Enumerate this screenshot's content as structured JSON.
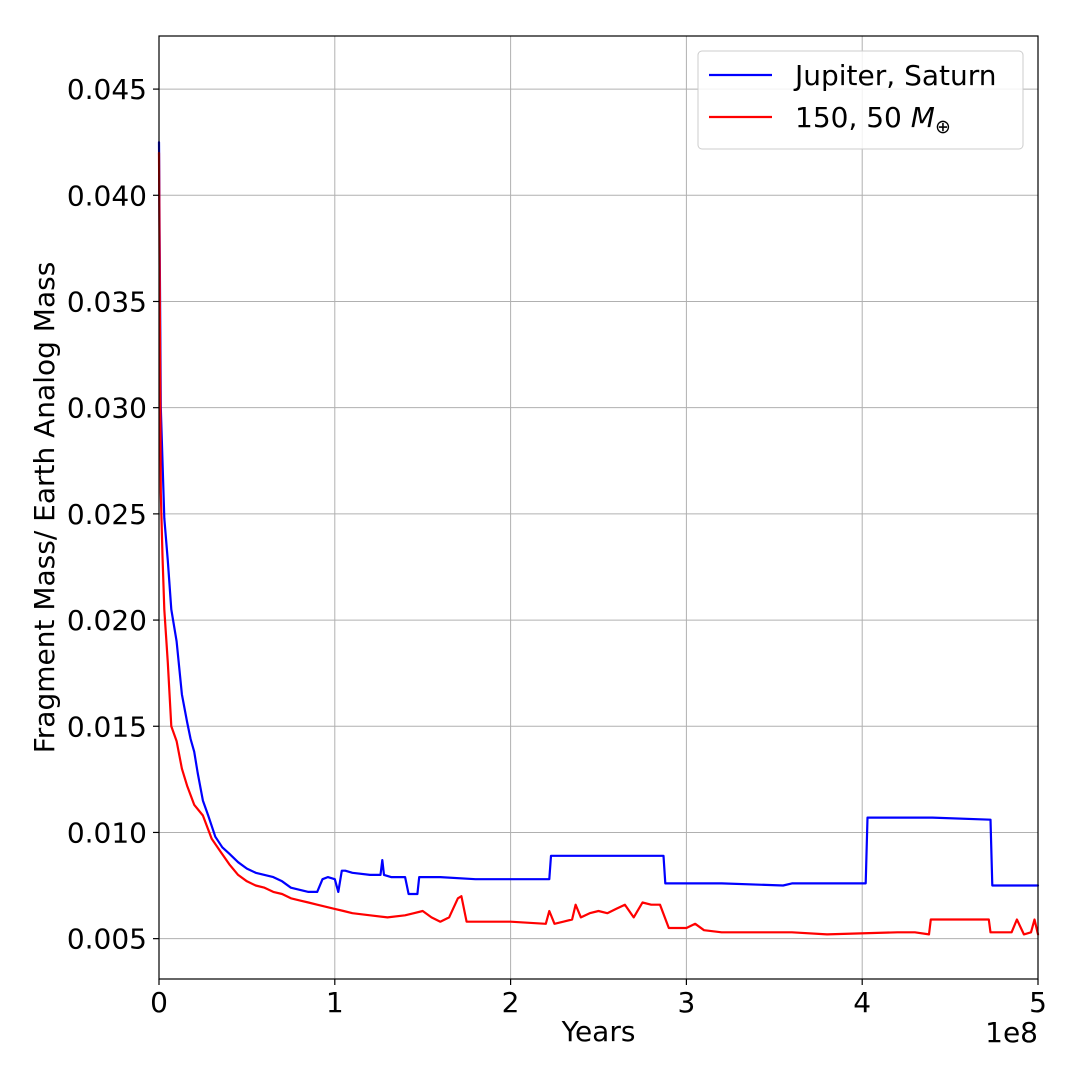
{
  "chart_data": {
    "type": "line",
    "title": "",
    "xlabel": "Years",
    "ylabel": "Fragment Mass/ Earth Analog Mass",
    "x_offset_label": "1e8",
    "xlim": [
      0,
      5
    ],
    "ylim": [
      0.0031,
      0.0475
    ],
    "grid": true,
    "legend_position": "top-right",
    "x_ticks": [
      0,
      1,
      2,
      3,
      4,
      5
    ],
    "x_tick_labels": [
      "0",
      "1",
      "2",
      "3",
      "4",
      "5"
    ],
    "y_ticks": [
      0.005,
      0.01,
      0.015,
      0.02,
      0.025,
      0.03,
      0.035,
      0.04,
      0.045
    ],
    "y_tick_labels": [
      "0.005",
      "0.010",
      "0.015",
      "0.020",
      "0.025",
      "0.030",
      "0.035",
      "0.040",
      "0.045"
    ],
    "series": [
      {
        "name": "Jupiter, Saturn",
        "legend_label": "Jupiter, Saturn",
        "color": "#0000ff",
        "x": [
          0.0,
          0.01,
          0.03,
          0.05,
          0.07,
          0.1,
          0.13,
          0.16,
          0.18,
          0.2,
          0.22,
          0.25,
          0.28,
          0.32,
          0.36,
          0.4,
          0.45,
          0.5,
          0.55,
          0.6,
          0.65,
          0.7,
          0.75,
          0.8,
          0.85,
          0.9,
          0.93,
          0.96,
          1.0,
          1.02,
          1.04,
          1.06,
          1.1,
          1.2,
          1.26,
          1.27,
          1.28,
          1.32,
          1.4,
          1.42,
          1.47,
          1.48,
          1.6,
          1.8,
          2.0,
          2.22,
          2.23,
          2.7,
          2.87,
          2.88,
          3.2,
          3.55,
          3.6,
          4.02,
          4.03,
          4.4,
          4.73,
          4.74,
          5.0
        ],
        "y": [
          0.0425,
          0.03,
          0.0248,
          0.0228,
          0.0205,
          0.019,
          0.0165,
          0.0152,
          0.0144,
          0.0138,
          0.0128,
          0.0115,
          0.0108,
          0.0098,
          0.0093,
          0.009,
          0.0086,
          0.0083,
          0.0081,
          0.008,
          0.0079,
          0.0077,
          0.0074,
          0.0073,
          0.0072,
          0.0072,
          0.0078,
          0.0079,
          0.0078,
          0.0072,
          0.0082,
          0.0082,
          0.0081,
          0.008,
          0.008,
          0.0087,
          0.008,
          0.0079,
          0.0079,
          0.0071,
          0.0071,
          0.0079,
          0.0079,
          0.0078,
          0.0078,
          0.0078,
          0.0089,
          0.0089,
          0.0089,
          0.0076,
          0.0076,
          0.0075,
          0.0076,
          0.0076,
          0.0107,
          0.0107,
          0.0106,
          0.0075,
          0.0075
        ]
      },
      {
        "name": "150, 50 M⊕",
        "legend_label": "150, 50 ",
        "legend_symbol": "M",
        "legend_subscript": "⊕",
        "color": "#ff0000",
        "x": [
          0.0,
          0.01,
          0.02,
          0.03,
          0.05,
          0.07,
          0.1,
          0.13,
          0.16,
          0.2,
          0.25,
          0.3,
          0.35,
          0.4,
          0.45,
          0.5,
          0.55,
          0.6,
          0.65,
          0.7,
          0.75,
          0.8,
          0.85,
          0.9,
          0.95,
          1.0,
          1.05,
          1.1,
          1.2,
          1.3,
          1.4,
          1.45,
          1.5,
          1.55,
          1.6,
          1.65,
          1.7,
          1.72,
          1.75,
          1.8,
          2.0,
          2.2,
          2.22,
          2.25,
          2.3,
          2.35,
          2.37,
          2.4,
          2.45,
          2.5,
          2.55,
          2.6,
          2.65,
          2.7,
          2.75,
          2.8,
          2.85,
          2.9,
          3.0,
          3.05,
          3.1,
          3.2,
          3.6,
          3.8,
          4.2,
          4.3,
          4.38,
          4.39,
          4.6,
          4.72,
          4.73,
          4.85,
          4.88,
          4.92,
          4.96,
          4.98,
          5.0
        ],
        "y": [
          0.042,
          0.026,
          0.023,
          0.0205,
          0.018,
          0.015,
          0.0143,
          0.013,
          0.0122,
          0.0113,
          0.0108,
          0.0097,
          0.0091,
          0.0085,
          0.008,
          0.0077,
          0.0075,
          0.0074,
          0.0072,
          0.0071,
          0.0069,
          0.0068,
          0.0067,
          0.0066,
          0.0065,
          0.0064,
          0.0063,
          0.0062,
          0.0061,
          0.006,
          0.0061,
          0.0062,
          0.0063,
          0.006,
          0.0058,
          0.006,
          0.0069,
          0.007,
          0.0058,
          0.0058,
          0.0058,
          0.0057,
          0.0063,
          0.0057,
          0.0058,
          0.0059,
          0.0066,
          0.006,
          0.0062,
          0.0063,
          0.0062,
          0.0064,
          0.0066,
          0.006,
          0.0067,
          0.0066,
          0.0066,
          0.0055,
          0.0055,
          0.0057,
          0.0054,
          0.0053,
          0.0053,
          0.0052,
          0.0053,
          0.0053,
          0.0052,
          0.0059,
          0.0059,
          0.0059,
          0.0053,
          0.0053,
          0.0059,
          0.0052,
          0.0053,
          0.0059,
          0.0052
        ]
      }
    ]
  }
}
